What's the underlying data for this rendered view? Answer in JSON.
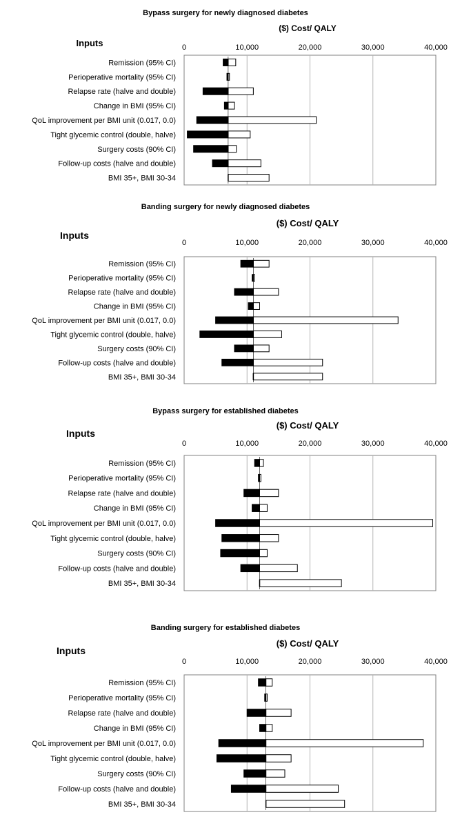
{
  "page": {
    "charts": [
      {
        "title": "Bypass surgery for newly diagnosed diabetes"
      },
      {
        "title": "Banding surgery for newly diagnosed diabetes"
      },
      {
        "title": "Bypass surgery for established diabetes"
      },
      {
        "title": "Banding surgery for established diabetes"
      }
    ]
  },
  "colors": {
    "low_bar": "#000000",
    "high_bar": "#ffffff",
    "grid": "#b3b3b3",
    "border": "#808080"
  },
  "chart_data": [
    {
      "type": "bar",
      "orientation": "horizontal-tornado",
      "title": "Bypass surgery for newly diagnosed diabetes",
      "y_heading": "Inputs",
      "xlabel": "($) Cost/ QALY",
      "xlim": [
        0,
        40000
      ],
      "xticks": [
        "0",
        "10,000",
        "20,000",
        "30,000",
        "40,000"
      ],
      "grid": true,
      "base": 7000,
      "categories": [
        "Remission (95% CI)",
        "Perioperative mortality (95% CI)",
        "Relapse rate (halve and double)",
        "Change in BMI (95% CI)",
        "QoL improvement per BMI unit (0.017, 0.0)",
        "Tight glycemic control (double, halve)",
        "Surgery costs (90% CI)",
        "Follow-up costs (halve and double)",
        "BMI 35+, BMI 30-34"
      ],
      "low": [
        6200,
        6800,
        3000,
        6400,
        2000,
        500,
        1500,
        4500,
        7000
      ],
      "high": [
        8200,
        7200,
        11000,
        8000,
        21000,
        10500,
        8300,
        12200,
        13500
      ]
    },
    {
      "type": "bar",
      "orientation": "horizontal-tornado",
      "title": "Banding surgery for newly diagnosed diabetes",
      "y_heading": "Inputs",
      "xlabel": "($) Cost/ QALY",
      "xlim": [
        0,
        40000
      ],
      "xticks": [
        "0",
        "10,000",
        "20,000",
        "30,000",
        "40,000"
      ],
      "grid": true,
      "base": 11000,
      "categories": [
        "Remission (95% CI)",
        "Perioperative mortality (95% CI)",
        "Relapse rate (halve and double)",
        "Change in BMI (95% CI)",
        "QoL improvement per BMI unit (0.017, 0.0)",
        "Tight glycemic control (double, halve)",
        "Surgery costs (90% CI)",
        "Follow-up costs (halve and double)",
        "BMI 35+, BMI 30-34"
      ],
      "low": [
        9000,
        10800,
        8000,
        10200,
        5000,
        2500,
        8000,
        6000,
        11000
      ],
      "high": [
        13500,
        11200,
        15000,
        12000,
        34000,
        15500,
        13500,
        22000,
        22000
      ]
    },
    {
      "type": "bar",
      "orientation": "horizontal-tornado",
      "title": "Bypass surgery for established diabetes",
      "y_heading": "Inputs",
      "xlabel": "($) Cost/ QALY",
      "xlim": [
        0,
        40000
      ],
      "xticks": [
        "0",
        "10,000",
        "20,000",
        "30,000",
        "40,000"
      ],
      "grid": true,
      "base": 12000,
      "categories": [
        "Remission (95% CI)",
        "Perioperative mortality (95% CI)",
        "Relapse rate (halve and double)",
        "Change in BMI (95% CI)",
        "QoL improvement per BMI unit (0.017, 0.0)",
        "Tight glycemic control (double, halve)",
        "Surgery costs (90% CI)",
        "Follow-up costs (halve and double)",
        "BMI 35+, BMI 30-34"
      ],
      "low": [
        11200,
        11800,
        9500,
        10800,
        5000,
        6000,
        5800,
        9000,
        12000
      ],
      "high": [
        12600,
        12200,
        15000,
        13200,
        39500,
        15000,
        13200,
        18000,
        25000
      ]
    },
    {
      "type": "bar",
      "orientation": "horizontal-tornado",
      "title": "Banding surgery for established diabetes",
      "y_heading": "Inputs",
      "xlabel": "($) Cost/ QALY",
      "xlim": [
        0,
        40000
      ],
      "xticks": [
        "0",
        "10,000",
        "20,000",
        "30,000",
        "40,000"
      ],
      "grid": true,
      "base": 13000,
      "categories": [
        "Remission (95% CI)",
        "Perioperative mortality (95% CI)",
        "Relapse rate (halve and double)",
        "Change in BMI (95% CI)",
        "QoL improvement per BMI unit (0.017, 0.0)",
        "Tight glycemic control (double, halve)",
        "Surgery costs (90% CI)",
        "Follow-up costs (halve and double)",
        "BMI 35+, BMI 30-34"
      ],
      "low": [
        11800,
        12800,
        10000,
        12000,
        5500,
        5200,
        9500,
        7500,
        13000
      ],
      "high": [
        14000,
        13200,
        17000,
        14000,
        38000,
        17000,
        16000,
        24500,
        25500
      ]
    }
  ]
}
